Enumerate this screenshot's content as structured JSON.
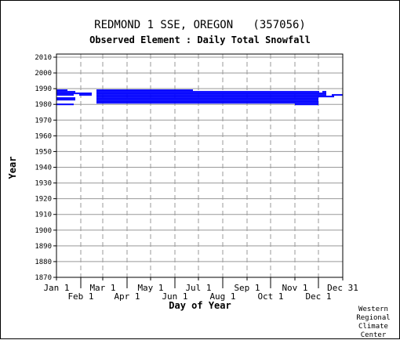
{
  "header": {
    "title": "REDMOND 1 SSE, OREGON   (357056)",
    "subtitle": "Observed Element : Daily Total Snowfall"
  },
  "credit": [
    "Western",
    "Regional",
    "Climate",
    "Center"
  ],
  "colors": {
    "data": "#0000ff",
    "grid": "#999999",
    "axis": "#000000",
    "background": "#ffffff"
  },
  "chart_data": {
    "type": "heatmap",
    "title": "REDMOND 1 SSE, OREGON   (357056)",
    "subtitle": "Observed Element : Daily Total Snowfall",
    "xlabel": "Day of Year",
    "ylabel": "Year",
    "xlim": [
      1,
      366
    ],
    "ylim": [
      1870,
      2012
    ],
    "x_ticks_top_row": [
      "Jan 1",
      "Mar 1",
      "May 1",
      "Jul 1",
      "Sep 1",
      "Nov 1",
      "Dec 31"
    ],
    "x_ticks_bottom_row": [
      "Feb 1",
      "Apr 1",
      "Jun 1",
      "Aug 1",
      "Oct 1",
      "Dec 1"
    ],
    "x_tick_days_top_row": [
      1,
      60,
      121,
      182,
      244,
      305,
      366
    ],
    "x_tick_days_bottom_row": [
      32,
      91,
      152,
      213,
      274,
      335
    ],
    "y_ticks": [
      "1870",
      "1880",
      "1890",
      "1900",
      "1910",
      "1920",
      "1930",
      "1940",
      "1950",
      "1960",
      "1970",
      "1980",
      "1990",
      "2000",
      "2010"
    ],
    "y_tick_values": [
      1870,
      1880,
      1890,
      1900,
      1910,
      1920,
      1930,
      1940,
      1950,
      1960,
      1970,
      1980,
      1990,
      2000,
      2010
    ],
    "grid": true,
    "legend": "none",
    "description_values": "years of record with days having observed data",
    "segments": [
      {
        "year": 1980,
        "start_day": 1,
        "end_day": 23
      },
      {
        "year": 1980,
        "start_day": 305,
        "end_day": 335
      },
      {
        "year": 1981,
        "start_day": 52,
        "end_day": 110
      },
      {
        "year": 1981,
        "start_day": 110,
        "end_day": 335
      },
      {
        "year": 1982,
        "start_day": 52,
        "end_day": 110
      },
      {
        "year": 1982,
        "start_day": 110,
        "end_day": 335
      },
      {
        "year": 1983,
        "start_day": 1,
        "end_day": 25
      },
      {
        "year": 1983,
        "start_day": 52,
        "end_day": 110
      },
      {
        "year": 1983,
        "start_day": 110,
        "end_day": 335
      },
      {
        "year": 1984,
        "start_day": 1,
        "end_day": 25
      },
      {
        "year": 1984,
        "start_day": 52,
        "end_day": 270
      },
      {
        "year": 1984,
        "start_day": 270,
        "end_day": 305
      },
      {
        "year": 1984,
        "start_day": 305,
        "end_day": 335
      },
      {
        "year": 1985,
        "start_day": 52,
        "end_day": 355
      },
      {
        "year": 1986,
        "start_day": 1,
        "end_day": 23
      },
      {
        "year": 1986,
        "start_day": 30,
        "end_day": 46
      },
      {
        "year": 1986,
        "start_day": 52,
        "end_day": 345
      },
      {
        "year": 1986,
        "start_day": 352,
        "end_day": 366
      },
      {
        "year": 1987,
        "start_day": 1,
        "end_day": 46
      },
      {
        "year": 1987,
        "start_day": 52,
        "end_day": 345
      },
      {
        "year": 1988,
        "start_day": 1,
        "end_day": 25
      },
      {
        "year": 1988,
        "start_day": 52,
        "end_day": 175
      },
      {
        "year": 1988,
        "start_day": 175,
        "end_day": 336
      },
      {
        "year": 1988,
        "start_day": 340,
        "end_day": 345
      },
      {
        "year": 1989,
        "start_day": 1,
        "end_day": 15
      },
      {
        "year": 1989,
        "start_day": 52,
        "end_day": 175
      }
    ]
  }
}
